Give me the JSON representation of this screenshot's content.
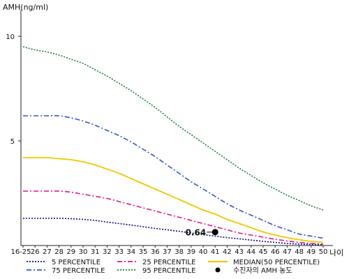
{
  "chart_data": {
    "type": "line",
    "title": "",
    "ylabel": "AMH(ng/ml)",
    "xlabel": "나이",
    "x_ticks": [
      "16-25",
      "26",
      "27",
      "28",
      "29",
      "30",
      "31",
      "32",
      "33",
      "34",
      "35",
      "36",
      "37",
      "38",
      "39",
      "40",
      "41",
      "42",
      "43",
      "44",
      "45",
      "46",
      "47",
      "48",
      "49",
      "50"
    ],
    "y_ticks": [
      5,
      10
    ],
    "ylim": [
      0,
      11
    ],
    "grid": false,
    "legend_position": "bottom",
    "series": [
      {
        "name": "5 PERCENTILE",
        "color": "#0a0a8c",
        "dash": "2,2",
        "values": [
          1.3,
          1.3,
          1.3,
          1.3,
          1.28,
          1.25,
          1.2,
          1.12,
          1.05,
          0.98,
          0.9,
          0.82,
          0.75,
          0.68,
          0.6,
          0.52,
          0.45,
          0.38,
          0.32,
          0.26,
          0.2,
          0.15,
          0.1,
          0.07,
          0.05,
          0.04
        ]
      },
      {
        "name": "25 PERCENTILE",
        "color": "#e0148c",
        "dash": "7,3,2,3",
        "values": [
          2.6,
          2.6,
          2.6,
          2.6,
          2.55,
          2.45,
          2.35,
          2.25,
          2.1,
          1.95,
          1.8,
          1.65,
          1.5,
          1.35,
          1.2,
          1.05,
          0.9,
          0.75,
          0.6,
          0.5,
          0.4,
          0.3,
          0.22,
          0.15,
          0.1,
          0.07
        ]
      },
      {
        "name": "MEDIAN(50 PERCENTILE)",
        "color": "#f0c800",
        "dash": "",
        "values": [
          4.2,
          4.2,
          4.2,
          4.15,
          4.1,
          4.0,
          3.85,
          3.65,
          3.45,
          3.2,
          2.95,
          2.7,
          2.45,
          2.2,
          1.95,
          1.7,
          1.5,
          1.25,
          1.05,
          0.85,
          0.65,
          0.5,
          0.38,
          0.28,
          0.2,
          0.15
        ]
      },
      {
        "name": "75 PERCENTILE",
        "color": "#3355cc",
        "dash": "7,3,2,3",
        "values": [
          6.2,
          6.2,
          6.2,
          6.2,
          6.1,
          5.95,
          5.75,
          5.5,
          5.25,
          4.95,
          4.6,
          4.25,
          3.85,
          3.45,
          3.05,
          2.7,
          2.35,
          2.0,
          1.7,
          1.45,
          1.2,
          0.95,
          0.75,
          0.55,
          0.45,
          0.35
        ]
      },
      {
        "name": "95 PERCENTILE",
        "color": "#1a7a3a",
        "dash": "2,2",
        "values": [
          9.5,
          9.35,
          9.25,
          9.1,
          8.9,
          8.7,
          8.4,
          8.1,
          7.75,
          7.4,
          7.0,
          6.6,
          6.15,
          5.7,
          5.3,
          4.9,
          4.5,
          4.1,
          3.7,
          3.35,
          3.0,
          2.7,
          2.4,
          2.15,
          1.9,
          1.7
        ]
      }
    ],
    "patient_point": {
      "legend": "수진자의 AMH 농도",
      "x": "41",
      "y": 0.64,
      "label": "0.64",
      "color": "#000000"
    }
  }
}
